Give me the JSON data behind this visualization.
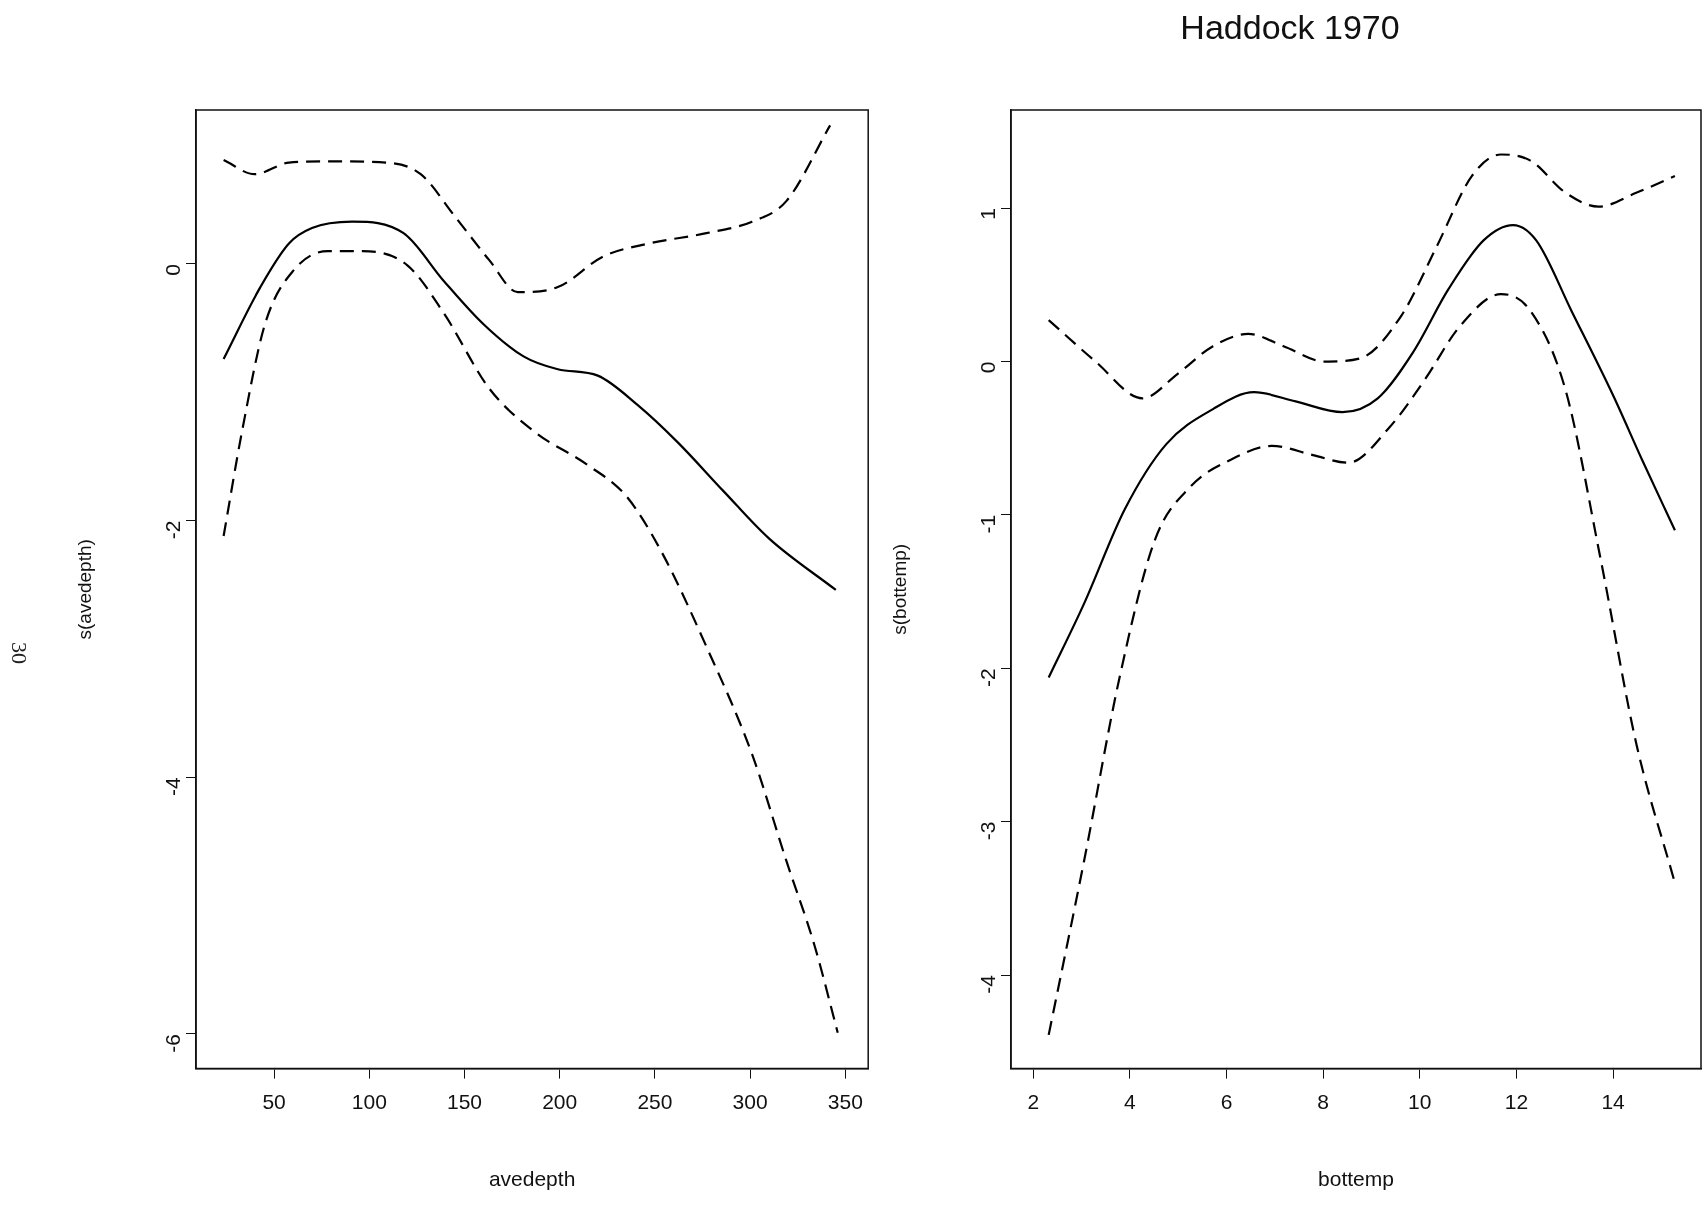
{
  "chart_data": [
    {
      "type": "line",
      "xlabel": "avedepth",
      "ylabel": "s(avedepth)",
      "annotations": [
        "30"
      ],
      "xlim": [
        9,
        362
      ],
      "ylim": [
        -6.27,
        1.2
      ],
      "xticks": [
        50,
        100,
        150,
        200,
        250,
        300,
        350
      ],
      "yticks": [
        -6,
        -4,
        -2,
        0
      ],
      "grid": false,
      "legend": false,
      "marker": "none",
      "series": [
        {
          "color": "#000000",
          "line_style": "solid",
          "x": [
            23.5,
            42.8,
            57.8,
            69.9,
            91,
            118,
            139,
            160,
            181,
            199,
            220,
            241,
            262,
            286,
            310,
            345
          ],
          "values": [
            -0.74,
            -0.18,
            0.16,
            0.28,
            0.33,
            0.24,
            -0.13,
            -0.47,
            -0.72,
            -0.82,
            -0.87,
            -1.1,
            -1.39,
            -1.77,
            -2.14,
            -2.54
          ]
        },
        {
          "color": "#000000",
          "line_style": "dashed",
          "x": [
            23.5,
            39.8,
            57.8,
            78.9,
            109,
            127,
            145,
            163,
            178,
            199,
            223,
            247,
            277,
            301,
            319,
            342
          ],
          "values": [
            0.81,
            0.7,
            0.79,
            0.8,
            0.79,
            0.7,
            0.37,
            0.03,
            -0.22,
            -0.18,
            0.06,
            0.16,
            0.24,
            0.33,
            0.49,
            1.08
          ]
        },
        {
          "color": "#000000",
          "line_style": "dashed",
          "x": [
            23.5,
            33.1,
            45.2,
            60.2,
            78.3,
            96.4,
            120,
            139,
            163,
            187,
            214,
            235,
            253,
            277,
            301,
            319,
            334,
            346
          ],
          "values": [
            -2.12,
            -1.31,
            -0.47,
            -0.05,
            0.1,
            0.1,
            -0.01,
            -0.38,
            -0.97,
            -1.31,
            -1.56,
            -1.81,
            -2.23,
            -2.98,
            -3.82,
            -4.65,
            -5.32,
            -5.99
          ]
        }
      ]
    },
    {
      "type": "line",
      "title": "Haddock 1970",
      "xlabel": "bottemp",
      "ylabel": "s(bottemp)",
      "xlim": [
        1.54,
        15.82
      ],
      "ylim": [
        -4.61,
        1.64
      ],
      "xticks": [
        2,
        4,
        6,
        8,
        10,
        12,
        14
      ],
      "yticks": [
        -4,
        -3,
        -2,
        -1,
        0,
        1
      ],
      "grid": false,
      "legend": false,
      "marker": "none",
      "series": [
        {
          "color": "#000000",
          "line_style": "solid",
          "x": [
            2.32,
            3.05,
            3.9,
            4.75,
            5.72,
            6.57,
            7.43,
            8.4,
            9.13,
            9.86,
            10.59,
            11.32,
            11.93,
            12.41,
            13.14,
            14.0,
            14.6,
            15.28
          ],
          "values": [
            -2.06,
            -1.58,
            -0.96,
            -0.54,
            -0.31,
            -0.2,
            -0.26,
            -0.33,
            -0.24,
            0.06,
            0.47,
            0.79,
            0.89,
            0.79,
            0.33,
            -0.22,
            -0.64,
            -1.1
          ]
        },
        {
          "color": "#000000",
          "line_style": "dashed",
          "x": [
            2.32,
            3.29,
            4.26,
            4.99,
            5.72,
            6.45,
            7.18,
            8.03,
            8.76,
            9.62,
            10.35,
            11.08,
            11.68,
            12.29,
            13.02,
            13.7,
            14.48,
            15.28
          ],
          "values": [
            0.27,
            0.0,
            -0.24,
            -0.08,
            0.1,
            0.18,
            0.1,
            0.0,
            0.02,
            0.3,
            0.75,
            1.21,
            1.35,
            1.31,
            1.1,
            1.01,
            1.1,
            1.21
          ]
        },
        {
          "color": "#000000",
          "line_style": "dashed",
          "x": [
            2.32,
            3.05,
            3.78,
            4.51,
            5.24,
            6.09,
            6.94,
            7.79,
            8.52,
            9.37,
            10.1,
            10.83,
            11.68,
            12.29,
            13.02,
            13.75,
            14.48,
            15.28
          ],
          "values": [
            -4.39,
            -3.26,
            -2.07,
            -1.17,
            -0.82,
            -0.64,
            -0.55,
            -0.61,
            -0.66,
            -0.43,
            -0.12,
            0.23,
            0.44,
            0.33,
            -0.19,
            -1.3,
            -2.49,
            -3.4
          ]
        }
      ]
    }
  ]
}
